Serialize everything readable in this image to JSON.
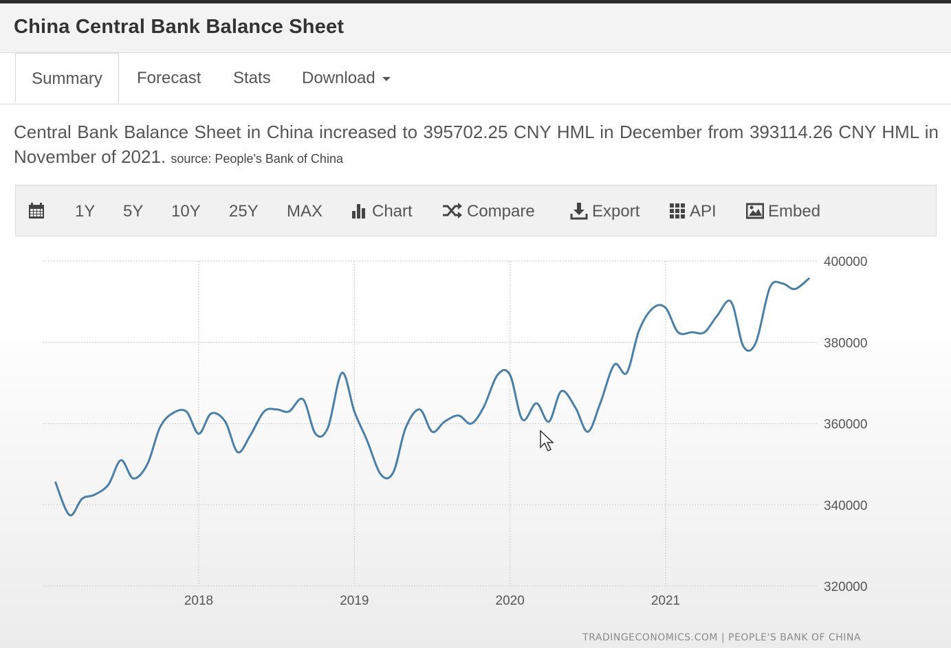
{
  "header": {
    "title": "China Central Bank Balance Sheet"
  },
  "tabs": [
    {
      "label": "Summary"
    },
    {
      "label": "Forecast"
    },
    {
      "label": "Stats"
    },
    {
      "label": "Download"
    }
  ],
  "summary": {
    "text": "Central Bank Balance Sheet in China increased to 395702.25 CNY HML in December from 393114.26 CNY HML in November of 2021.",
    "source": "source: People's Bank of China"
  },
  "toolbar": {
    "calendar_icon": "calendar-icon",
    "ranges": [
      "1Y",
      "5Y",
      "10Y",
      "25Y",
      "MAX"
    ],
    "chart_label": "Chart",
    "compare_label": "Compare",
    "export_label": "Export",
    "api_label": "API",
    "embed_label": "Embed"
  },
  "colors": {
    "line": "#4a7fa7",
    "grid": "#c9c9c9",
    "axis_text": "#555555"
  },
  "chart_data": {
    "type": "line",
    "title": "",
    "xlabel": "",
    "ylabel": "",
    "ylim": [
      320000,
      400000
    ],
    "yticks": [
      400000,
      380000,
      360000,
      340000,
      320000
    ],
    "ytick_labels": [
      "400000",
      "380000",
      "360000",
      "340000",
      "320000"
    ],
    "xticks": [
      2018,
      2019,
      2020,
      2021
    ],
    "xtick_labels": [
      "2018",
      "2019",
      "2020",
      "2021"
    ],
    "xlim": [
      2017.0,
      2022.05
    ],
    "grid": true,
    "legend": "none",
    "watermark": "TRADINGECONOMICS.COM  |  PEOPLE'S BANK OF CHINA",
    "series": [
      {
        "name": "Central Bank Balance Sheet",
        "x": [
          2017.08,
          2017.17,
          2017.25,
          2017.33,
          2017.42,
          2017.5,
          2017.58,
          2017.67,
          2017.75,
          2017.83,
          2017.92,
          2018.0,
          2018.08,
          2018.17,
          2018.25,
          2018.33,
          2018.42,
          2018.5,
          2018.58,
          2018.67,
          2018.75,
          2018.83,
          2018.92,
          2019.0,
          2019.08,
          2019.17,
          2019.25,
          2019.33,
          2019.42,
          2019.5,
          2019.58,
          2019.67,
          2019.75,
          2019.83,
          2019.92,
          2020.0,
          2020.08,
          2020.17,
          2020.25,
          2020.33,
          2020.42,
          2020.5,
          2020.58,
          2020.67,
          2020.75,
          2020.83,
          2020.92,
          2021.0,
          2021.08,
          2021.17,
          2021.25,
          2021.33,
          2021.42,
          2021.5,
          2021.58,
          2021.67,
          2021.75,
          2021.83,
          2021.92
        ],
        "values": [
          345500,
          337500,
          341500,
          342500,
          345000,
          351000,
          346500,
          350000,
          359000,
          362500,
          363000,
          357500,
          362500,
          360500,
          353000,
          357000,
          363000,
          363500,
          363000,
          366000,
          357500,
          359000,
          372500,
          363000,
          356000,
          347500,
          348000,
          359000,
          363500,
          358000,
          360500,
          362000,
          360000,
          364000,
          372000,
          372000,
          361000,
          365000,
          360500,
          368000,
          364000,
          358000,
          365000,
          374500,
          372500,
          383000,
          388500,
          388500,
          382500,
          382500,
          382500,
          386500,
          390000,
          379000,
          380000,
          393500,
          394500,
          393114.26,
          395702.25
        ]
      }
    ]
  }
}
